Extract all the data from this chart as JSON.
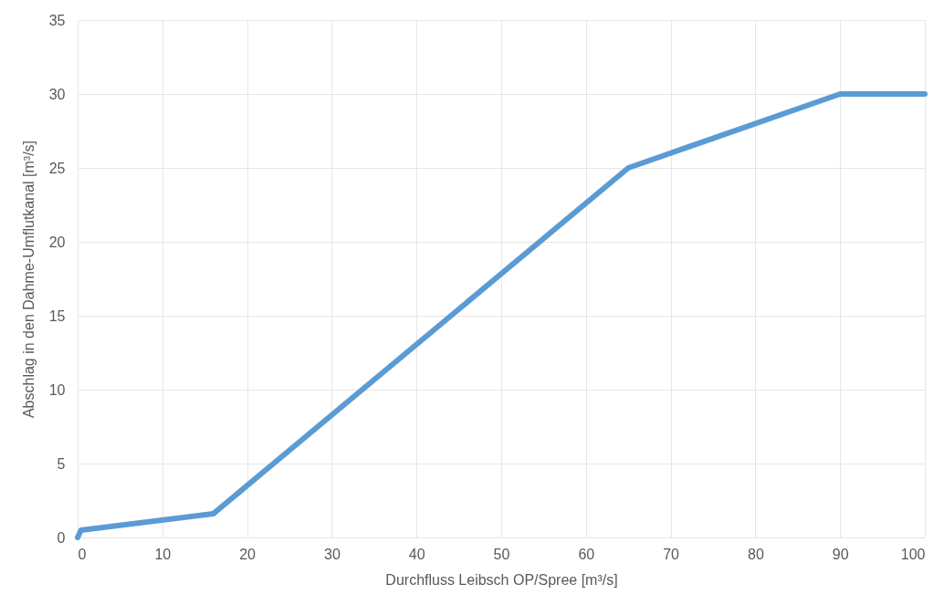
{
  "chart_data": {
    "type": "line",
    "xlabel": "Durchfluss Leibsch OP/Spree [m³/s]",
    "ylabel": "Abschlag in den Dahme-Umflutkanal [m³/s]",
    "x": [
      0,
      0.4,
      16,
      65,
      90,
      100
    ],
    "series": [
      {
        "color": "#5b9bd5",
        "values": [
          0,
          0.5,
          1.6,
          25,
          30,
          30
        ]
      }
    ],
    "xlim": [
      0,
      100
    ],
    "xticks": [
      0,
      10,
      20,
      30,
      40,
      50,
      60,
      70,
      80,
      90,
      100
    ],
    "ylim": [
      0,
      35
    ],
    "yticks": [
      0,
      5,
      10,
      15,
      20,
      25,
      30,
      35
    ],
    "grid": true,
    "marker": "none",
    "line_style": "solid"
  }
}
